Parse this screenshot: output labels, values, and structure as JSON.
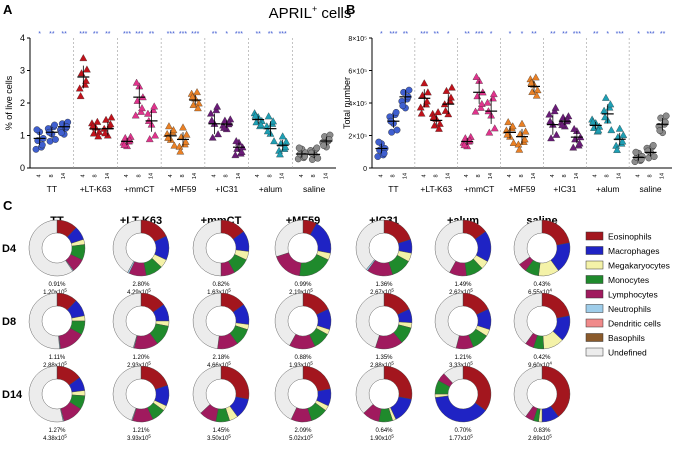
{
  "figure_title": "APRIL",
  "figure_title_sup": "+",
  "figure_title_suffix": " cells",
  "panel_labels": [
    "A",
    "B",
    "C"
  ],
  "days": [
    "4",
    "8",
    "14"
  ],
  "colors": {
    "TT": "#3f5fd0",
    "+LT-K63": "#c0121b",
    "+mmCT": "#e0338c",
    "+MF59": "#e98025",
    "+IC31": "#6a1b78",
    "+alum": "#1e9fb4",
    "saline": "#8c8c8c",
    "sig": "#3b57d0"
  },
  "chart_data": [
    {
      "type": "scatter",
      "panel": "A",
      "title": "APRIL+ cells",
      "ylabel": "% of live cells",
      "ylim": [
        0,
        4
      ],
      "yticks": [
        "0",
        "1",
        "2",
        "3",
        "4"
      ],
      "groups": [
        "TT",
        "+LT-K63",
        "+mmCT",
        "+MF59",
        "+IC31",
        "+alum",
        "saline"
      ],
      "series": [
        {
          "name": "TT",
          "values": [
            0.91,
            1.1,
            1.27
          ]
        },
        {
          "name": "+LT-K63",
          "values": [
            2.8,
            1.2,
            1.21
          ]
        },
        {
          "name": "+mmCT",
          "values": [
            0.82,
            2.18,
            1.45
          ]
        },
        {
          "name": "+MF59",
          "values": [
            0.99,
            0.88,
            2.09
          ]
        },
        {
          "name": "+IC31",
          "values": [
            1.36,
            1.35,
            0.64
          ]
        },
        {
          "name": "+alum",
          "values": [
            1.49,
            1.21,
            0.7
          ]
        },
        {
          "name": "saline",
          "values": [
            0.43,
            0.42,
            0.83
          ]
        }
      ],
      "significance": [
        [
          "*",
          "**",
          "**"
        ],
        [
          "***",
          "**",
          "**"
        ],
        [
          "***",
          "***",
          "**"
        ],
        [
          "***",
          "***",
          "***"
        ],
        [
          "**",
          "*",
          "***"
        ],
        [
          "**",
          "**",
          "***"
        ],
        [
          "",
          "",
          ""
        ]
      ]
    },
    {
      "type": "scatter",
      "panel": "B",
      "ylabel": "Total number",
      "ylim": [
        0,
        800000
      ],
      "yticks": [
        "0",
        "2×10⁵",
        "4×10⁵",
        "6×10⁵",
        "8×10⁵"
      ],
      "groups": [
        "TT",
        "+LT-K63",
        "+mmCT",
        "+MF59",
        "+IC31",
        "+alum",
        "saline"
      ],
      "series": [
        {
          "name": "TT",
          "values": [
            120000,
            288000,
            438000
          ]
        },
        {
          "name": "+LT-K63",
          "values": [
            429000,
            293000,
            393000
          ]
        },
        {
          "name": "+mmCT",
          "values": [
            163000,
            466000,
            350000
          ]
        },
        {
          "name": "+MF59",
          "values": [
            219000,
            193000,
            502000
          ]
        },
        {
          "name": "+IC31",
          "values": [
            267000,
            288000,
            190000
          ]
        },
        {
          "name": "+alum",
          "values": [
            262000,
            333000,
            177000
          ]
        },
        {
          "name": "saline",
          "values": [
            65000,
            96000,
            269000
          ]
        }
      ],
      "significance": [
        [
          "*",
          "***",
          "**"
        ],
        [
          "***",
          "**",
          "*"
        ],
        [
          "**",
          "***",
          "*"
        ],
        [
          "*",
          "*",
          "**"
        ],
        [
          "**",
          "**",
          "***"
        ],
        [
          "**",
          "*",
          "***"
        ],
        [
          "*",
          "***",
          "**"
        ]
      ]
    },
    {
      "type": "pie",
      "panel": "C",
      "columns": [
        "TT",
        "+LT-K63",
        "+mmCT",
        "+MF59",
        "+IC31",
        "+alum",
        "saline"
      ],
      "rows": [
        "D4",
        "D8",
        "D14"
      ],
      "categories": [
        "Eosinophils",
        "Macrophages",
        "Megakaryocytes",
        "Monocytes",
        "Lymphocytes",
        "Neutrophils",
        "Dendritic cells",
        "Basophils",
        "Undefined"
      ],
      "category_colors": [
        "#a3161e",
        "#1f23c4",
        "#f4f2a8",
        "#1f8a2c",
        "#a01a5e",
        "#9ecdea",
        "#f08a8a",
        "#8a5a2b",
        "#ececec"
      ],
      "donuts": [
        [
          {
            "pct": "0.91%",
            "num": "1.20x10",
            "exp": "5",
            "values": [
              12,
              8,
              3,
              9,
              8,
              0.5,
              0,
              0,
              59.5
            ]
          },
          {
            "pct": "2.80%",
            "num": "4.29x10",
            "exp": "5",
            "values": [
              18,
              14,
              5,
              10,
              10,
              1,
              0,
              0,
              42
            ]
          },
          {
            "pct": "0.82%",
            "num": "1.63x10",
            "exp": "5",
            "values": [
              15,
              12,
              5,
              10,
              8,
              0,
              0,
              0,
              50
            ]
          },
          {
            "pct": "0.99%",
            "num": "2.19x10",
            "exp": "5",
            "values": [
              8,
              20,
              4,
              20,
              18,
              0,
              0,
              0,
              30
            ]
          },
          {
            "pct": "1.36%",
            "num": "2.67x10",
            "exp": "5",
            "values": [
              20,
              8,
              5,
              12,
              15,
              1,
              0,
              0,
              39
            ]
          },
          {
            "pct": "1.49%",
            "num": "2.62x10",
            "exp": "5",
            "values": [
              15,
              18,
              5,
              10,
              10,
              0,
              0,
              0,
              42
            ]
          },
          {
            "pct": "0.43%",
            "num": "6.55x10",
            "exp": "4",
            "values": [
              22,
              18,
              12,
              8,
              5,
              0,
              0,
              0,
              35
            ]
          }
        ],
        [
          {
            "pct": "1.11%",
            "num": "2.88x10",
            "exp": "5",
            "values": [
              12,
              10,
              3,
              8,
              15,
              0.5,
              0,
              0,
              51.5
            ]
          },
          {
            "pct": "1.20%",
            "num": "2.93x10",
            "exp": "5",
            "values": [
              15,
              10,
              3,
              12,
              14,
              0.5,
              0,
              0,
              45.5
            ]
          },
          {
            "pct": "2.18%",
            "num": "4.66x10",
            "exp": "5",
            "values": [
              15,
              12,
              3,
              10,
              12,
              0,
              0,
              0,
              48
            ]
          },
          {
            "pct": "0.88%",
            "num": "1.93x10",
            "exp": "5",
            "values": [
              18,
              12,
              3,
              10,
              15,
              0,
              0,
              0,
              42
            ]
          },
          {
            "pct": "1.35%",
            "num": "2.88x10",
            "exp": "5",
            "values": [
              18,
              8,
              3,
              10,
              16,
              0,
              0,
              0,
              45
            ]
          },
          {
            "pct": "1.21%",
            "num": "3.33x10",
            "exp": "5",
            "values": [
              18,
              12,
              4,
              10,
              10,
              0,
              0,
              0,
              46
            ]
          },
          {
            "pct": "0.42%",
            "num": "9.60x10",
            "exp": "4",
            "values": [
              22,
              15,
              12,
              6,
              5,
              0,
              0,
              0,
              40
            ]
          }
        ],
        [
          {
            "pct": "1.27%",
            "num": "4.38x10",
            "exp": "5",
            "values": [
              15,
              8,
              3,
              8,
              12,
              0.5,
              0,
              0,
              53.5
            ]
          },
          {
            "pct": "1.21%",
            "num": "3.93x10",
            "exp": "5",
            "values": [
              20,
              12,
              3,
              8,
              12,
              0.5,
              0,
              0,
              44.5
            ]
          },
          {
            "pct": "1.45%",
            "num": "3.50x10",
            "exp": "5",
            "values": [
              28,
              12,
              5,
              8,
              10,
              0,
              0,
              0,
              37
            ]
          },
          {
            "pct": "2.09%",
            "num": "5.02x10",
            "exp": "5",
            "values": [
              22,
              10,
              3,
              10,
              12,
              0,
              0,
              0,
              43
            ]
          },
          {
            "pct": "0.64%",
            "num": "1.90x10",
            "exp": "5",
            "values": [
              28,
              15,
              2,
              8,
              10,
              0,
              0,
              0,
              37
            ]
          },
          {
            "pct": "0.70%",
            "num": "1.77x10",
            "exp": "5",
            "values": [
              35,
              38,
              2,
              8,
              5,
              0,
              0,
              0,
              12
            ]
          },
          {
            "pct": "0.83%",
            "num": "2.69x10",
            "exp": "5",
            "values": [
              40,
              10,
              2,
              3,
              5,
              0,
              0,
              0,
              40
            ]
          }
        ]
      ]
    }
  ]
}
